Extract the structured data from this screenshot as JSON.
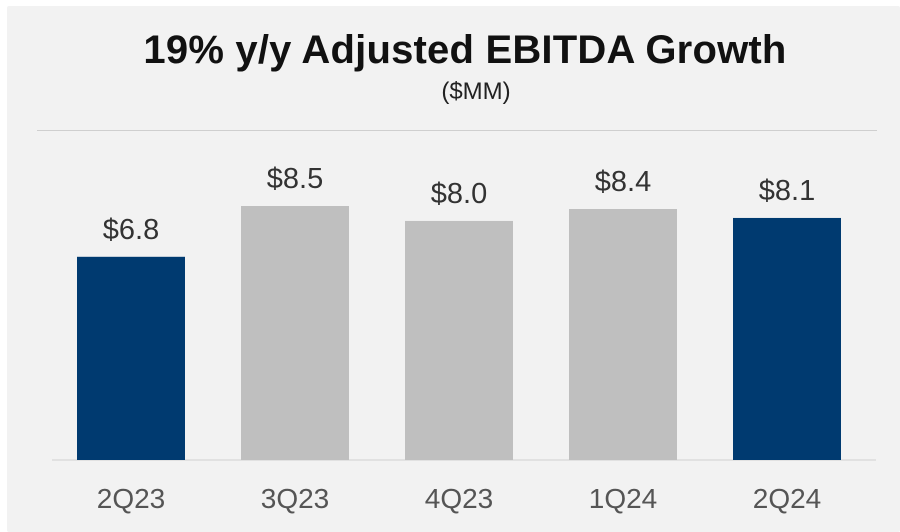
{
  "chart_data": {
    "type": "bar",
    "title": "19% y/y Adjusted EBITDA Growth",
    "subtitle": "($MM)",
    "categories": [
      "2Q23",
      "3Q23",
      "4Q23",
      "1Q24",
      "2Q24"
    ],
    "values": [
      6.8,
      8.5,
      8.0,
      8.4,
      8.1
    ],
    "value_labels": [
      "$6.8",
      "$8.5",
      "$8.0",
      "$8.4",
      "$8.1"
    ],
    "ylim": [
      0,
      8.5
    ],
    "grid": false,
    "legend": "none",
    "colors": {
      "highlight": "#003a70",
      "default": "#bfbfbf",
      "highlighted_categories": [
        "2Q23",
        "2Q24"
      ]
    }
  }
}
